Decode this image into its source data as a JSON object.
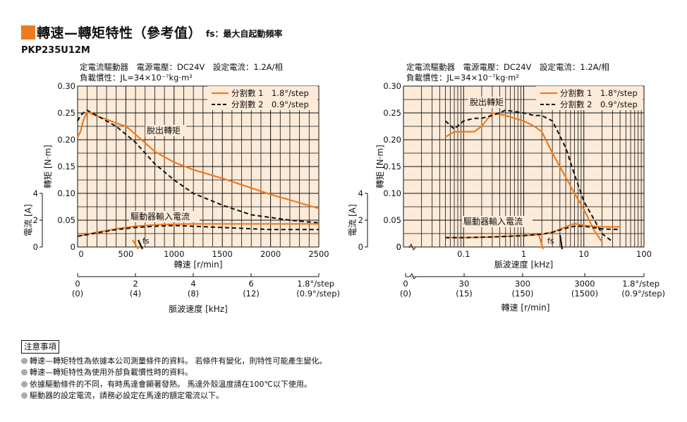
{
  "header": {
    "title": "轉速—轉矩特性（參考值）",
    "subtitle": "fs：最大自起動頻率",
    "model": "PKP235U12M"
  },
  "colors": {
    "accent": "#f07a1e",
    "plot_bg": "#fcebd9",
    "grid": "#111111"
  },
  "chart_data": [
    {
      "type": "line",
      "conditions": [
        "定電流驅動器　電源電壓：DC24V　設定電流：1.2A/相",
        "負載慣性：JL=34×10⁻⁷kg·m²"
      ],
      "xlabel": "轉速 [r/min]",
      "ylabel": "轉矩 [N·m]",
      "y2label": "電流 [A]",
      "x_scale": "linear",
      "xlim": [
        0,
        2500
      ],
      "ylim": [
        0,
        0.3
      ],
      "x_ticks": [
        "0",
        "500",
        "1000",
        "1500",
        "2000",
        "2500"
      ],
      "y_ticks": [
        "0",
        "0.05",
        "0.10",
        "0.15",
        "0.20",
        "0.25",
        "0.30"
      ],
      "y2_ticks": [
        "0",
        "2",
        "4"
      ],
      "legend": [
        "分割數 1　1.8°/step",
        "分割數 2　0.9°/step"
      ],
      "annotations": {
        "pullout": "脫出轉矩",
        "current": "驅動器輸入電流",
        "fs": "fs"
      },
      "secondary_axis": {
        "label": "脈波速度 [kHz]",
        "ticks": [
          "0",
          "2",
          "4",
          "6",
          "1.8°/step"
        ],
        "sub_ticks": [
          "(0)",
          "(4)",
          "(8)",
          "(12)",
          "(0.9°/step)"
        ]
      },
      "series": [
        {
          "name": "分割數 1　1.8°/step",
          "style": "solid",
          "x": [
            0,
            30,
            60,
            100,
            200,
            300,
            400,
            500,
            550,
            600,
            800,
            1000,
            1200,
            1500,
            2000,
            2500
          ],
          "y": [
            0.205,
            0.215,
            0.236,
            0.252,
            0.244,
            0.238,
            0.231,
            0.225,
            0.218,
            0.21,
            0.178,
            0.158,
            0.144,
            0.128,
            0.098,
            0.072
          ]
        },
        {
          "name": "分割數 2　0.9°/step",
          "style": "dashed",
          "x": [
            0,
            30,
            60,
            100,
            200,
            400,
            600,
            800,
            1000,
            1200,
            1500,
            1800,
            2000,
            2200,
            2500
          ],
          "y": [
            0.235,
            0.245,
            0.25,
            0.255,
            0.245,
            0.225,
            0.195,
            0.155,
            0.125,
            0.1,
            0.078,
            0.06,
            0.055,
            0.05,
            0.045
          ]
        },
        {
          "name": "驅動器輸入電流 分割數 1",
          "axis": "y2",
          "style": "solid",
          "x": [
            0,
            200,
            400,
            600,
            800,
            1000,
            1200,
            1500,
            2000,
            2500
          ],
          "y": [
            0.8,
            1.1,
            1.35,
            1.55,
            1.65,
            1.7,
            1.72,
            1.72,
            1.72,
            1.72
          ]
        },
        {
          "name": "驅動器輸入電流 分割數 2",
          "axis": "y2",
          "style": "dashed",
          "x": [
            0,
            200,
            400,
            600,
            800,
            1000,
            1200,
            1500,
            2000,
            2500
          ],
          "y": [
            0.8,
            1.05,
            1.3,
            1.45,
            1.55,
            1.6,
            1.55,
            1.45,
            1.3,
            1.3
          ]
        }
      ]
    },
    {
      "type": "line",
      "conditions": [
        "定電流驅動器　電源電壓：DC24V　設定電流：1.2A/相",
        "負載慣性：JL=34×10⁻⁷kg·m²"
      ],
      "xlabel": "脈波速度 [kHz]",
      "ylabel": "轉矩 [N·m]",
      "y2label": "電流 [A]",
      "x_scale": "log",
      "xlim": [
        0.01,
        100
      ],
      "ylim": [
        0,
        0.3
      ],
      "x_ticks": [
        "0.1",
        "1",
        "10",
        "100"
      ],
      "y_ticks": [
        "0",
        "0.05",
        "0.10",
        "0.15",
        "0.20",
        "0.25",
        "0.30"
      ],
      "y2_ticks": [
        "0",
        "2",
        "4"
      ],
      "legend": [
        "分割數 1　1.8°/step",
        "分割數 2　0.9°/step"
      ],
      "annotations": {
        "pullout": "脫出轉矩",
        "current": "驅動器輸入電流",
        "fs": "fs"
      },
      "secondary_axis": {
        "label": "轉速 [r/min]",
        "ticks": [
          "0",
          "30",
          "300",
          "3000",
          "1.8°/step"
        ],
        "sub_ticks": [
          "(0)",
          "(15)",
          "(150)",
          "(1500)",
          "(0.9°/step)"
        ]
      },
      "series": [
        {
          "name": "分割數 1　1.8°/step",
          "style": "solid",
          "x": [
            0.05,
            0.07,
            0.1,
            0.15,
            0.2,
            0.3,
            0.5,
            1,
            1.5,
            2,
            3,
            5,
            7,
            10,
            15,
            20
          ],
          "y": [
            0.205,
            0.215,
            0.215,
            0.215,
            0.225,
            0.25,
            0.245,
            0.235,
            0.225,
            0.215,
            0.175,
            0.13,
            0.1,
            0.07,
            0.03,
            0.01
          ]
        },
        {
          "name": "分割數 2　0.9°/step",
          "style": "dashed",
          "x": [
            0.05,
            0.07,
            0.1,
            0.15,
            0.2,
            0.3,
            0.5,
            1,
            1.5,
            2,
            3,
            5,
            7,
            10,
            15,
            20,
            30
          ],
          "y": [
            0.235,
            0.22,
            0.235,
            0.24,
            0.24,
            0.245,
            0.255,
            0.25,
            0.245,
            0.245,
            0.235,
            0.185,
            0.135,
            0.085,
            0.05,
            0.025,
            0.01
          ]
        },
        {
          "name": "驅動器輸入電流 分割數 1",
          "axis": "y2",
          "style": "solid",
          "x": [
            0.05,
            0.1,
            0.3,
            1,
            2,
            3,
            5,
            7,
            10,
            20,
            40
          ],
          "y": [
            0.7,
            0.7,
            0.75,
            0.85,
            0.95,
            1.1,
            1.5,
            1.75,
            1.6,
            1.5,
            1.5
          ]
        },
        {
          "name": "驅動器輸入電流 分割數 2",
          "axis": "y2",
          "style": "dashed",
          "x": [
            0.05,
            0.1,
            0.3,
            1,
            2,
            3,
            5,
            7,
            10,
            20,
            40
          ],
          "y": [
            0.7,
            0.7,
            0.75,
            0.85,
            0.95,
            1.1,
            1.4,
            1.55,
            1.55,
            1.35,
            1.3
          ]
        }
      ]
    }
  ],
  "notes": {
    "title": "注意事項",
    "items": [
      "轉速—轉矩特性為依據本公司測量條件的資料。 若條件有變化，則特性可能產生變化。",
      "轉速—轉矩特性為使用外部負載慣性時的資料。",
      "依據驅動條件的不同，有時馬達會顯著發熱。 馬達外殼溫度請在100℃以下使用。",
      "驅動器的設定電流，請務必設定在馬達的額定電流以下。"
    ]
  }
}
